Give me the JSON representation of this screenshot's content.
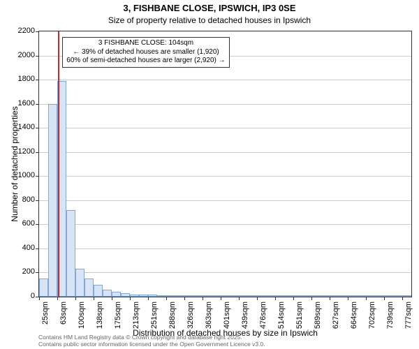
{
  "title_line1": "3, FISHBANE CLOSE, IPSWICH, IP3 0SE",
  "title_line2": "Size of property relative to detached houses in Ipswich",
  "yaxis_label": "Number of detached properties",
  "xaxis_label": "Distribution of detached houses by size in Ipswich",
  "footer_line1": "Contains HM Land Registry data © Crown copyright and database right 2025.",
  "footer_line2": "Contains public sector information licensed under the Open Government Licence v3.0.",
  "annotation": {
    "line1": "3 FISHBANE CLOSE: 104sqm",
    "line2": "← 39% of detached houses are smaller (1,920)",
    "line3": "60% of semi-detached houses are larger (2,920) →"
  },
  "chart": {
    "type": "histogram",
    "ylim": [
      0,
      2200
    ],
    "ytick_step": 200,
    "yticks": [
      0,
      200,
      400,
      600,
      800,
      1000,
      1200,
      1400,
      1600,
      1800,
      2000,
      2200
    ],
    "xtick_labels": [
      "25sqm",
      "63sqm",
      "100sqm",
      "138sqm",
      "175sqm",
      "213sqm",
      "251sqm",
      "288sqm",
      "326sqm",
      "363sqm",
      "401sqm",
      "439sqm",
      "476sqm",
      "514sqm",
      "551sqm",
      "589sqm",
      "627sqm",
      "664sqm",
      "702sqm",
      "739sqm",
      "777sqm"
    ],
    "xtick_step_labels": 2,
    "values": [
      150,
      1600,
      1790,
      720,
      230,
      150,
      100,
      60,
      40,
      30,
      20,
      15,
      15,
      10,
      10,
      8,
      5,
      5,
      5,
      2,
      2,
      2,
      2,
      2,
      2,
      2,
      2,
      2,
      2,
      2,
      2,
      2,
      2,
      2,
      2,
      2,
      2,
      2,
      2,
      2,
      2
    ],
    "bar_fill": "#d6e4f5",
    "bar_stroke": "#7fa8d9",
    "background_color": "#ffffff",
    "grid_color": "#cccccc",
    "marker_color": "#d62728",
    "marker_value_index": 2.1,
    "title_fontsize": 13,
    "subtitle_fontsize": 12,
    "label_fontsize": 12,
    "tick_fontsize": 11,
    "annot_fontsize": 10,
    "plot_border": "#333333"
  }
}
